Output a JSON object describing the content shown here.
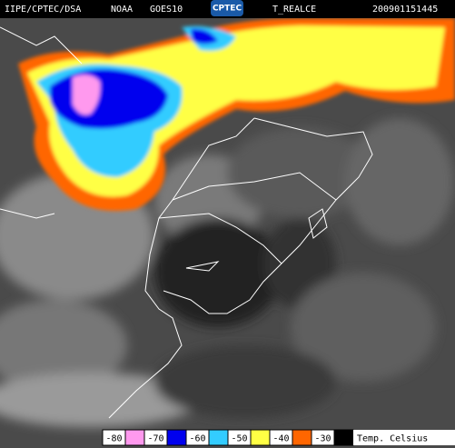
{
  "header": {
    "source": "IIPE/CPTEC/DSA",
    "satellite_agency": "NOAA",
    "satellite": "GOES10",
    "logo": "CPTEC",
    "product": "T_REALCE",
    "timestamp": "200901151445"
  },
  "legend": {
    "title": "Temp. Celsius",
    "items": [
      {
        "value": -80,
        "color": "#ff99ee"
      },
      {
        "value": -70,
        "color": "#0000ee"
      },
      {
        "value": -60,
        "color": "#33ccff"
      },
      {
        "value": -50,
        "color": "#ffff44"
      },
      {
        "value": -40,
        "color": "#ff6600"
      },
      {
        "value": -30,
        "color": "#000000"
      }
    ]
  }
}
